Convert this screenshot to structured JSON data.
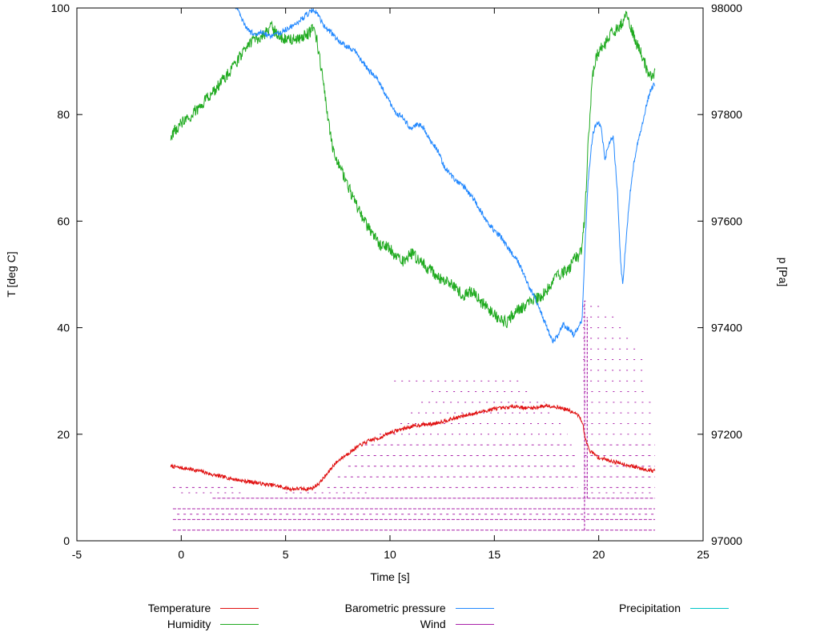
{
  "figure": {
    "axes": {
      "x": {
        "label": "Time [s]",
        "min": -5,
        "max": 25,
        "ticks": [
          -5,
          0,
          5,
          10,
          15,
          20,
          25
        ]
      },
      "y_left": {
        "label": "T [deg C]",
        "min": 0,
        "max": 100,
        "ticks": [
          0,
          20,
          40,
          60,
          80,
          100
        ]
      },
      "y_right": {
        "label": "p [Pa]",
        "min": 97000,
        "max": 98000,
        "ticks": [
          97000,
          97200,
          97400,
          97600,
          97800,
          98000
        ]
      }
    }
  },
  "legend": {
    "items": [
      {
        "label": "Temperature",
        "color": "#e01010"
      },
      {
        "label": "Humidity",
        "color": "#1faa1f"
      },
      {
        "label": "Barometric pressure",
        "color": "#2288ff"
      },
      {
        "label": "Wind",
        "color": "#aa22aa"
      },
      {
        "label": "Precipitation",
        "color": "#00c5c8"
      }
    ]
  },
  "chart_data": {
    "type": "line",
    "title": "",
    "xlabel": "Time [s]",
    "ylabel_left": "T [deg C]",
    "ylabel_right": "p [Pa]",
    "xlim": [
      -5,
      25
    ],
    "ylim_left": [
      0,
      100
    ],
    "ylim_right": [
      97000,
      98000
    ],
    "grid": false,
    "legend_position": "bottom",
    "series": [
      {
        "name": "Temperature",
        "axis": "left",
        "color": "#e01010",
        "noise": 0.35,
        "points": [
          [
            -0.5,
            14.0
          ],
          [
            0,
            13.7
          ],
          [
            0.5,
            13.4
          ],
          [
            1,
            13.0
          ],
          [
            1.5,
            12.4
          ],
          [
            2,
            12.0
          ],
          [
            2.5,
            11.6
          ],
          [
            3,
            11.2
          ],
          [
            3.5,
            11.0
          ],
          [
            4,
            10.6
          ],
          [
            4.5,
            10.4
          ],
          [
            5,
            9.9
          ],
          [
            5.3,
            9.7
          ],
          [
            5.6,
            9.8
          ],
          [
            6,
            9.7
          ],
          [
            6.3,
            9.9
          ],
          [
            6.6,
            10.8
          ],
          [
            7,
            12.6
          ],
          [
            7.3,
            14.2
          ],
          [
            7.6,
            15.3
          ],
          [
            8,
            16.4
          ],
          [
            8.5,
            17.8
          ],
          [
            9,
            18.8
          ],
          [
            9.5,
            19.3
          ],
          [
            10,
            20.3
          ],
          [
            10.5,
            20.9
          ],
          [
            11,
            21.4
          ],
          [
            11.5,
            21.8
          ],
          [
            12,
            21.9
          ],
          [
            12.5,
            22.4
          ],
          [
            13,
            22.9
          ],
          [
            13.5,
            23.4
          ],
          [
            14,
            23.9
          ],
          [
            14.5,
            24.3
          ],
          [
            15,
            24.8
          ],
          [
            15.5,
            24.9
          ],
          [
            16,
            25.3
          ],
          [
            16.5,
            24.9
          ],
          [
            17,
            25.0
          ],
          [
            17.5,
            25.4
          ],
          [
            18,
            25.1
          ],
          [
            18.5,
            24.6
          ],
          [
            19,
            23.6
          ],
          [
            19.2,
            22.5
          ],
          [
            19.4,
            18.5
          ],
          [
            19.6,
            16.8
          ],
          [
            20,
            15.6
          ],
          [
            20.5,
            15.1
          ],
          [
            21,
            14.6
          ],
          [
            21.5,
            14.1
          ],
          [
            22,
            13.6
          ],
          [
            22.4,
            13.3
          ],
          [
            22.7,
            13.1
          ]
        ]
      },
      {
        "name": "Humidity",
        "axis": "left",
        "color": "#1faa1f",
        "noise": 1.1,
        "points": [
          [
            -0.5,
            76
          ],
          [
            0,
            78.5
          ],
          [
            0.5,
            80
          ],
          [
            1,
            82
          ],
          [
            1.5,
            84
          ],
          [
            2,
            86.5
          ],
          [
            2.5,
            89
          ],
          [
            3,
            92
          ],
          [
            3.5,
            94
          ],
          [
            4,
            95
          ],
          [
            4.3,
            96.5
          ],
          [
            4.6,
            95
          ],
          [
            5,
            94
          ],
          [
            5.5,
            94
          ],
          [
            6,
            95
          ],
          [
            6.3,
            96
          ],
          [
            6.5,
            94
          ],
          [
            6.8,
            86
          ],
          [
            7,
            80
          ],
          [
            7.3,
            73
          ],
          [
            7.6,
            70
          ],
          [
            8,
            66.5
          ],
          [
            8.5,
            62
          ],
          [
            9,
            58.5
          ],
          [
            9.5,
            55.5
          ],
          [
            10,
            55
          ],
          [
            10.3,
            53
          ],
          [
            10.6,
            52.5
          ],
          [
            11,
            54
          ],
          [
            11.3,
            53
          ],
          [
            11.6,
            52
          ],
          [
            12,
            50.5
          ],
          [
            12.5,
            49
          ],
          [
            13,
            48
          ],
          [
            13.5,
            46
          ],
          [
            14,
            47
          ],
          [
            14.3,
            45
          ],
          [
            14.6,
            44
          ],
          [
            15,
            42.5
          ],
          [
            15.3,
            41.5
          ],
          [
            15.6,
            41
          ],
          [
            16,
            43
          ],
          [
            16.5,
            44
          ],
          [
            17,
            45.5
          ],
          [
            17.3,
            46
          ],
          [
            17.6,
            47.5
          ],
          [
            18,
            49.5
          ],
          [
            18.3,
            50.5
          ],
          [
            18.6,
            51
          ],
          [
            18.8,
            53.5
          ],
          [
            19,
            53
          ],
          [
            19.2,
            55
          ],
          [
            19.35,
            62
          ],
          [
            19.5,
            75
          ],
          [
            19.7,
            87
          ],
          [
            19.9,
            91
          ],
          [
            20.1,
            92.5
          ],
          [
            20.3,
            93
          ],
          [
            20.6,
            95.5
          ],
          [
            20.9,
            96
          ],
          [
            21.1,
            97
          ],
          [
            21.3,
            98.5
          ],
          [
            21.5,
            97
          ],
          [
            21.7,
            94.5
          ],
          [
            21.9,
            92.5
          ],
          [
            22.1,
            91
          ],
          [
            22.3,
            88.5
          ],
          [
            22.5,
            87
          ],
          [
            22.7,
            88
          ]
        ]
      },
      {
        "name": "Barometric pressure",
        "axis": "right",
        "color": "#2288ff",
        "noise": 5,
        "points": [
          [
            2.55,
            98005
          ],
          [
            2.7,
            97995
          ],
          [
            2.9,
            97980
          ],
          [
            3.1,
            97965
          ],
          [
            3.3,
            97955
          ],
          [
            3.6,
            97950
          ],
          [
            3.9,
            97956
          ],
          [
            4.2,
            97946
          ],
          [
            4.5,
            97950
          ],
          [
            4.8,
            97955
          ],
          [
            5.1,
            97962
          ],
          [
            5.4,
            97968
          ],
          [
            5.7,
            97977
          ],
          [
            6,
            97987
          ],
          [
            6.3,
            97996
          ],
          [
            6.5,
            97990
          ],
          [
            6.8,
            97968
          ],
          [
            7,
            97960
          ],
          [
            7.3,
            97950
          ],
          [
            7.6,
            97936
          ],
          [
            8,
            97926
          ],
          [
            8.3,
            97921
          ],
          [
            8.6,
            97903
          ],
          [
            9,
            97882
          ],
          [
            9.3,
            97872
          ],
          [
            9.6,
            97852
          ],
          [
            10,
            97822
          ],
          [
            10.3,
            97802
          ],
          [
            10.6,
            97797
          ],
          [
            11,
            97772
          ],
          [
            11.3,
            97782
          ],
          [
            11.6,
            97776
          ],
          [
            12,
            97747
          ],
          [
            12.3,
            97731
          ],
          [
            12.6,
            97702
          ],
          [
            13,
            97682
          ],
          [
            13.3,
            97672
          ],
          [
            13.6,
            97662
          ],
          [
            14,
            97642
          ],
          [
            14.3,
            97622
          ],
          [
            14.6,
            97602
          ],
          [
            15,
            97582
          ],
          [
            15.3,
            97572
          ],
          [
            15.6,
            97552
          ],
          [
            16,
            97532
          ],
          [
            16.3,
            97512
          ],
          [
            16.6,
            97482
          ],
          [
            17,
            97452
          ],
          [
            17.3,
            97422
          ],
          [
            17.6,
            97392
          ],
          [
            17.8,
            97376
          ],
          [
            18,
            97382
          ],
          [
            18.3,
            97406
          ],
          [
            18.6,
            97396
          ],
          [
            18.8,
            97386
          ],
          [
            19,
            97400
          ],
          [
            19.2,
            97412
          ],
          [
            19.35,
            97560
          ],
          [
            19.5,
            97680
          ],
          [
            19.7,
            97760
          ],
          [
            19.9,
            97785
          ],
          [
            20.1,
            97780
          ],
          [
            20.3,
            97716
          ],
          [
            20.5,
            97748
          ],
          [
            20.7,
            97758
          ],
          [
            20.9,
            97652
          ],
          [
            21.05,
            97520
          ],
          [
            21.15,
            97482
          ],
          [
            21.3,
            97560
          ],
          [
            21.5,
            97652
          ],
          [
            21.7,
            97712
          ],
          [
            21.9,
            97752
          ],
          [
            22.1,
            97782
          ],
          [
            22.3,
            97822
          ],
          [
            22.5,
            97848
          ],
          [
            22.7,
            97858
          ]
        ]
      },
      {
        "name": "Precipitation",
        "axis": "left",
        "color": "#00c5c8",
        "noise": 0,
        "points": []
      }
    ],
    "wind": {
      "name": "Wind",
      "axis": "left",
      "color": "#aa22aa",
      "levels": [
        {
          "y": 2,
          "density": "high",
          "spans": [
            [
              -0.4,
              22.7
            ]
          ]
        },
        {
          "y": 4,
          "density": "high",
          "spans": [
            [
              -0.4,
              22.7
            ]
          ]
        },
        {
          "y": 5,
          "density": "med",
          "spans": [
            [
              -0.2,
              22.7
            ]
          ]
        },
        {
          "y": 6,
          "density": "high",
          "spans": [
            [
              -0.4,
              22.7
            ]
          ]
        },
        {
          "y": 8,
          "density": "high",
          "spans": [
            [
              1.5,
              22.7
            ]
          ]
        },
        {
          "y": 9,
          "density": "low",
          "spans": [
            [
              0,
              3
            ],
            [
              5,
              9
            ],
            [
              19.3,
              22.7
            ]
          ]
        },
        {
          "y": 10,
          "density": "med",
          "spans": [
            [
              -0.4,
              2.5
            ],
            [
              7,
              19
            ],
            [
              19.3,
              22.7
            ]
          ]
        },
        {
          "y": 12,
          "density": "med",
          "spans": [
            [
              7.5,
              19
            ],
            [
              19.3,
              22.7
            ]
          ]
        },
        {
          "y": 14,
          "density": "med",
          "spans": [
            [
              8,
              19
            ],
            [
              19.3,
              22.7
            ]
          ]
        },
        {
          "y": 16,
          "density": "med",
          "spans": [
            [
              8.3,
              18.9
            ],
            [
              19.3,
              22.7
            ]
          ]
        },
        {
          "y": 18,
          "density": "med",
          "spans": [
            [
              8.8,
              18.7
            ],
            [
              19.3,
              22.7
            ]
          ]
        },
        {
          "y": 20,
          "density": "low",
          "spans": [
            [
              9.5,
              18.5
            ],
            [
              19.3,
              22.7
            ]
          ]
        },
        {
          "y": 22,
          "density": "low",
          "spans": [
            [
              10.5,
              18.2
            ],
            [
              19.3,
              22.7
            ]
          ]
        },
        {
          "y": 24,
          "density": "low",
          "spans": [
            [
              11,
              17.8
            ],
            [
              19.3,
              22.6
            ]
          ]
        },
        {
          "y": 26,
          "density": "low",
          "spans": [
            [
              11.5,
              17.4
            ],
            [
              19.3,
              22.5
            ]
          ]
        },
        {
          "y": 28,
          "density": "low",
          "spans": [
            [
              12,
              16.8
            ],
            [
              19.3,
              22.4
            ]
          ]
        },
        {
          "y": 30,
          "density": "low",
          "spans": [
            [
              10.2,
              16.2
            ],
            [
              19.25,
              22.3
            ]
          ]
        },
        {
          "y": 32,
          "density": "low",
          "spans": [
            [
              19.25,
              22.3
            ]
          ]
        },
        {
          "y": 34,
          "density": "low",
          "spans": [
            [
              19.25,
              22.2
            ]
          ]
        },
        {
          "y": 36,
          "density": "low",
          "spans": [
            [
              19.25,
              22.0
            ]
          ]
        },
        {
          "y": 38,
          "density": "low",
          "spans": [
            [
              19.25,
              21.6
            ]
          ]
        },
        {
          "y": 40,
          "density": "low",
          "spans": [
            [
              19.25,
              21.2
            ]
          ]
        },
        {
          "y": 42,
          "density": "low",
          "spans": [
            [
              19.25,
              20.8
            ]
          ]
        },
        {
          "y": 44,
          "density": "low",
          "spans": [
            [
              19.25,
              20.2
            ]
          ]
        },
        {
          "y": 45,
          "density": "low",
          "spans": [
            [
              19.3,
              19.6
            ]
          ]
        }
      ],
      "verticals": [
        {
          "x": 19.32,
          "y1": 2,
          "y2": 45
        },
        {
          "x": 19.45,
          "y1": 8,
          "y2": 42
        }
      ]
    }
  }
}
